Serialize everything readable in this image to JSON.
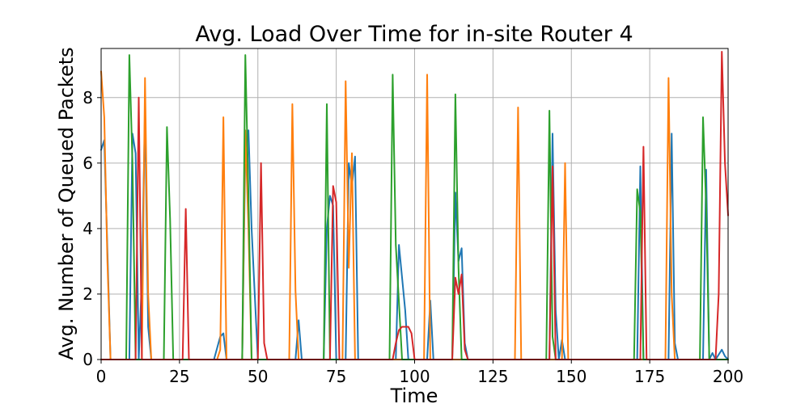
{
  "chart_data": {
    "type": "line",
    "title": "Avg. Load Over Time for in-site Router 4",
    "xlabel": "Time",
    "ylabel": "Avg. Number of Queued Packets",
    "xlim": [
      0,
      200
    ],
    "ylim": [
      0,
      9.5
    ],
    "xticks": [
      0,
      25,
      50,
      75,
      100,
      125,
      150,
      175,
      200
    ],
    "xtick_labels": [
      "0",
      "25",
      "50",
      "75",
      "100",
      "125",
      "150",
      "175",
      "200"
    ],
    "yticks": [
      0,
      2,
      4,
      6,
      8
    ],
    "ytick_labels": [
      "0",
      "2",
      "4",
      "6",
      "8"
    ],
    "grid": true,
    "legend": "none",
    "series": [
      {
        "color": "#1f77b4",
        "points": [
          [
            0,
            6.4
          ],
          [
            1,
            6.7
          ],
          [
            3,
            0
          ],
          [
            9,
            0
          ],
          [
            10,
            6.9
          ],
          [
            11,
            6.3
          ],
          [
            12,
            0
          ],
          [
            13,
            2.5
          ],
          [
            14,
            7.6
          ],
          [
            15,
            1.0
          ],
          [
            16,
            0
          ],
          [
            36,
            0
          ],
          [
            38,
            0.7
          ],
          [
            39,
            0.8
          ],
          [
            40,
            0
          ],
          [
            45,
            0
          ],
          [
            46,
            6.4
          ],
          [
            47,
            7.0
          ],
          [
            48,
            4.0
          ],
          [
            50,
            0
          ],
          [
            51,
            0
          ],
          [
            62,
            0
          ],
          [
            63,
            1.2
          ],
          [
            64,
            0
          ],
          [
            71,
            0
          ],
          [
            72,
            4.0
          ],
          [
            73,
            5.0
          ],
          [
            74,
            4.7
          ],
          [
            75,
            0
          ],
          [
            78,
            0
          ],
          [
            79,
            6.0
          ],
          [
            80,
            5.3
          ],
          [
            81,
            6.2
          ],
          [
            82,
            0
          ],
          [
            94,
            0
          ],
          [
            95,
            3.5
          ],
          [
            97,
            1.5
          ],
          [
            98,
            0
          ],
          [
            104,
            0
          ],
          [
            105,
            1.8
          ],
          [
            106,
            0
          ],
          [
            112,
            0
          ],
          [
            113,
            5.1
          ],
          [
            114,
            3.0
          ],
          [
            115,
            3.4
          ],
          [
            116,
            0.5
          ],
          [
            117,
            0
          ],
          [
            143,
            0
          ],
          [
            144,
            6.9
          ],
          [
            145,
            1.5
          ],
          [
            146,
            0
          ],
          [
            147,
            0.6
          ],
          [
            148,
            0
          ],
          [
            171,
            0
          ],
          [
            172,
            5.9
          ],
          [
            173,
            0
          ],
          [
            181,
            0
          ],
          [
            182,
            6.9
          ],
          [
            183,
            0.5
          ],
          [
            184,
            0
          ],
          [
            192,
            0
          ],
          [
            193,
            5.8
          ],
          [
            194,
            0
          ],
          [
            195,
            0.2
          ],
          [
            196,
            0
          ],
          [
            198,
            0.3
          ],
          [
            199,
            0.1
          ],
          [
            200,
            0
          ]
        ]
      },
      {
        "color": "#ff7f0e",
        "points": [
          [
            0,
            8.8
          ],
          [
            1,
            7.4
          ],
          [
            2,
            3.0
          ],
          [
            3,
            0
          ],
          [
            13,
            0
          ],
          [
            14,
            8.6
          ],
          [
            15,
            2.0
          ],
          [
            16,
            0
          ],
          [
            37,
            0
          ],
          [
            38,
            0.3
          ],
          [
            39,
            7.4
          ],
          [
            40,
            0
          ],
          [
            45,
            0
          ],
          [
            46,
            7.0
          ],
          [
            47,
            4.0
          ],
          [
            48,
            0
          ],
          [
            60,
            0
          ],
          [
            61,
            7.8
          ],
          [
            62,
            2.1
          ],
          [
            63,
            0
          ],
          [
            77,
            0
          ],
          [
            78,
            8.5
          ],
          [
            79,
            2.8
          ],
          [
            80,
            6.3
          ],
          [
            81,
            0
          ],
          [
            103,
            0
          ],
          [
            104,
            8.7
          ],
          [
            105,
            0
          ],
          [
            132,
            0
          ],
          [
            133,
            7.7
          ],
          [
            134,
            0
          ],
          [
            147,
            0
          ],
          [
            148,
            6.0
          ],
          [
            149,
            0
          ],
          [
            180,
            0
          ],
          [
            181,
            8.6
          ],
          [
            182,
            2.0
          ],
          [
            183,
            0
          ],
          [
            200,
            0
          ]
        ]
      },
      {
        "color": "#2ca02c",
        "points": [
          [
            0,
            0
          ],
          [
            8,
            0
          ],
          [
            9,
            9.3
          ],
          [
            10,
            6.0
          ],
          [
            11,
            0
          ],
          [
            20,
            0
          ],
          [
            21,
            7.1
          ],
          [
            22,
            4.3
          ],
          [
            23,
            0
          ],
          [
            45,
            0
          ],
          [
            46,
            9.3
          ],
          [
            47,
            5.0
          ],
          [
            48,
            0
          ],
          [
            71,
            0
          ],
          [
            72,
            7.8
          ],
          [
            73,
            0
          ],
          [
            92,
            0
          ],
          [
            93,
            8.7
          ],
          [
            94,
            3.5
          ],
          [
            96,
            0
          ],
          [
            112,
            0
          ],
          [
            113,
            8.1
          ],
          [
            114,
            2.8
          ],
          [
            115,
            0
          ],
          [
            142,
            0
          ],
          [
            143,
            7.6
          ],
          [
            144,
            0.7
          ],
          [
            145,
            0
          ],
          [
            170,
            0
          ],
          [
            171,
            5.2
          ],
          [
            172,
            4.5
          ],
          [
            173,
            0
          ],
          [
            191,
            0
          ],
          [
            192,
            7.4
          ],
          [
            193,
            4.7
          ],
          [
            194,
            0
          ],
          [
            200,
            0
          ]
        ]
      },
      {
        "color": "#d62728",
        "points": [
          [
            0,
            0
          ],
          [
            11,
            0
          ],
          [
            12,
            8.0
          ],
          [
            13,
            0
          ],
          [
            26,
            0
          ],
          [
            27,
            4.6
          ],
          [
            28,
            0
          ],
          [
            50,
            0
          ],
          [
            51,
            6.0
          ],
          [
            52,
            0.5
          ],
          [
            53,
            0
          ],
          [
            73,
            0
          ],
          [
            74,
            5.3
          ],
          [
            75,
            4.8
          ],
          [
            76,
            0
          ],
          [
            93,
            0
          ],
          [
            94,
            0.5
          ],
          [
            95,
            0.9
          ],
          [
            96,
            1.0
          ],
          [
            98,
            1.0
          ],
          [
            99,
            0.8
          ],
          [
            100,
            0
          ],
          [
            112,
            0
          ],
          [
            113,
            2.5
          ],
          [
            114,
            2.0
          ],
          [
            115,
            2.6
          ],
          [
            116,
            0.3
          ],
          [
            117,
            0
          ],
          [
            143,
            0
          ],
          [
            144,
            5.9
          ],
          [
            145,
            0
          ],
          [
            172,
            0
          ],
          [
            173,
            6.5
          ],
          [
            174,
            0
          ],
          [
            196,
            0
          ],
          [
            197,
            2.0
          ],
          [
            198,
            9.4
          ],
          [
            199,
            6.0
          ],
          [
            200,
            4.4
          ]
        ]
      }
    ]
  }
}
